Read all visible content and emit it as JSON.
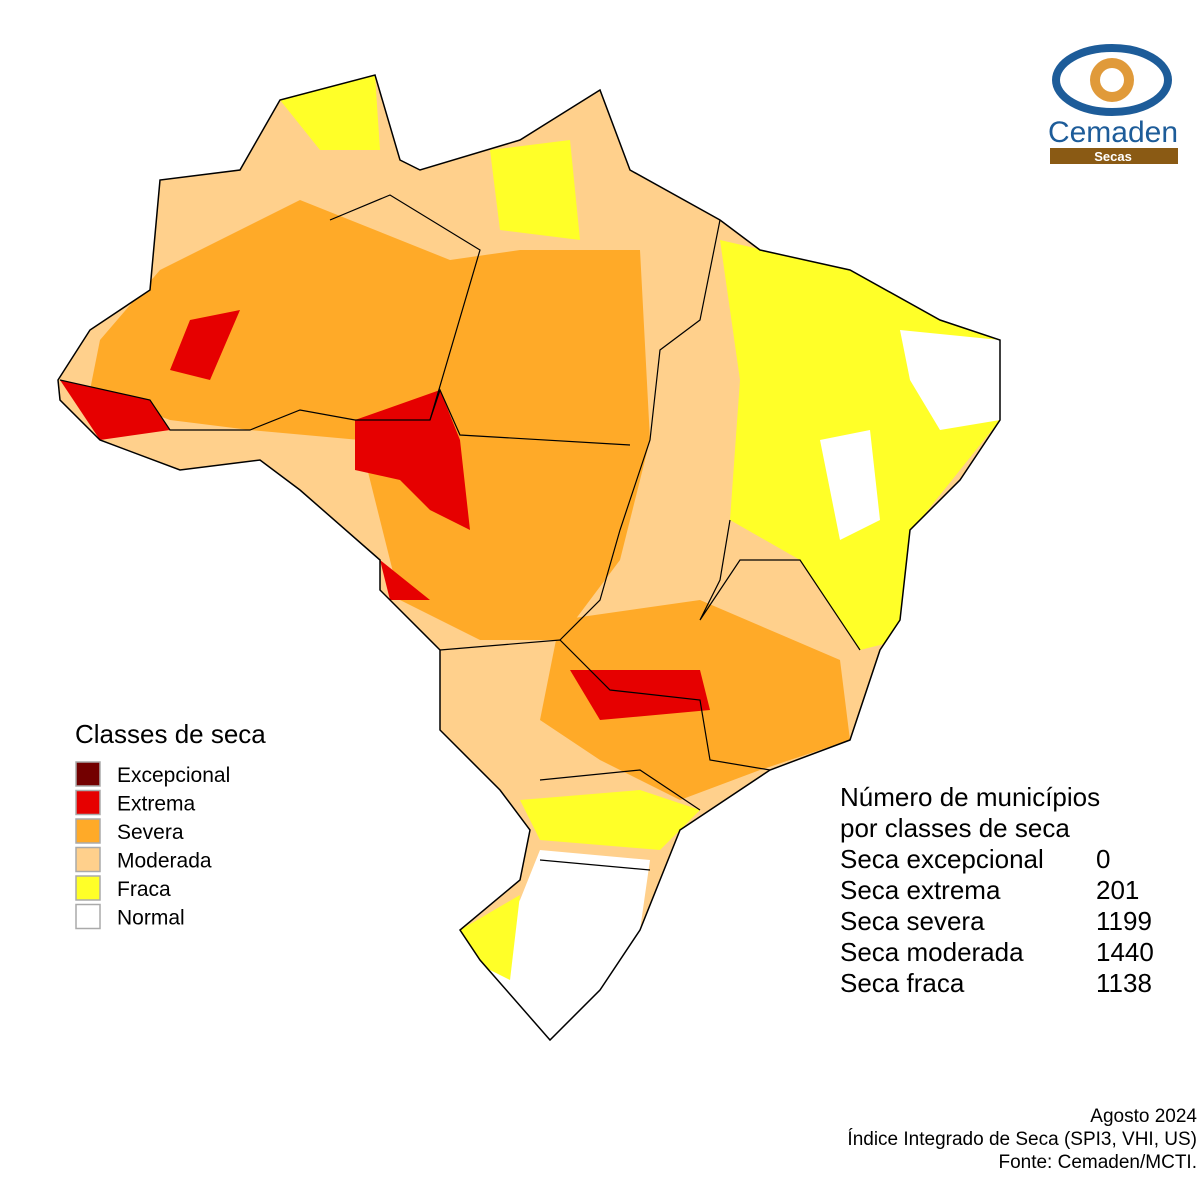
{
  "logo": {
    "name": "Cemaden",
    "tag": "Secas"
  },
  "legend": {
    "title": "Classes de seca",
    "items": [
      {
        "label": "Excepcional",
        "color": "#730000"
      },
      {
        "label": "Extrema",
        "color": "#e60000"
      },
      {
        "label": "Severa",
        "color": "#ffaa28"
      },
      {
        "label": "Moderada",
        "color": "#ffd08c"
      },
      {
        "label": "Fraca",
        "color": "#ffff28"
      },
      {
        "label": "Normal",
        "color": "#ffffff"
      }
    ]
  },
  "stats": {
    "title": [
      "Número de municípios",
      "por classes de seca"
    ],
    "rows": [
      {
        "label": "Seca excepcional",
        "count": 0
      },
      {
        "label": "Seca extrema",
        "count": 201
      },
      {
        "label": "Seca severa",
        "count": 1199
      },
      {
        "label": "Seca moderada",
        "count": 1440
      },
      {
        "label": "Seca fraca",
        "count": 1138
      }
    ]
  },
  "footer": [
    "Agosto 2024",
    "Índice Integrado de Seca (SPI3, VHI, US)",
    "Fonte: Cemaden/MCTI."
  ]
}
